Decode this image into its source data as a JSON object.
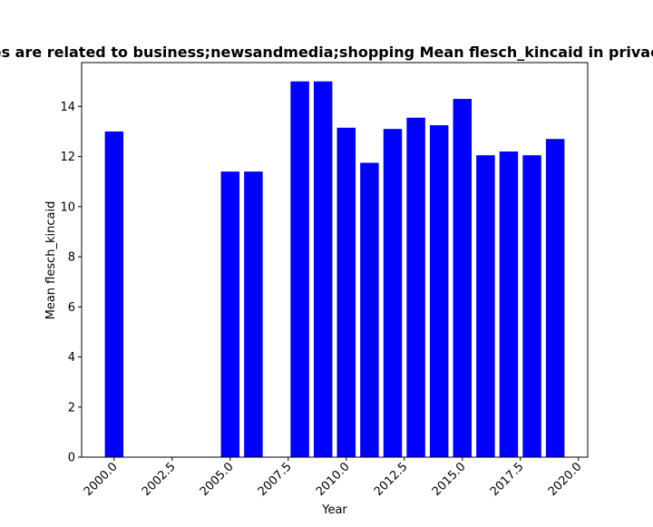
{
  "chart_data": {
    "type": "bar",
    "title": "Websites are related to business;newsandmedia;shopping Mean flesch_kincaid in privacy policies",
    "xlabel": "Year",
    "ylabel": "Mean flesch_kincaid",
    "x": [
      2000,
      2005,
      2006,
      2008,
      2009,
      2010,
      2011,
      2012,
      2013,
      2014,
      2015,
      2016,
      2017,
      2018,
      2019
    ],
    "values": [
      13.0,
      11.4,
      11.4,
      15.0,
      15.0,
      13.15,
      11.75,
      13.1,
      13.55,
      13.25,
      14.3,
      12.05,
      12.2,
      12.05,
      12.7
    ],
    "xlim": [
      1998.6,
      2020.4
    ],
    "ylim": [
      0,
      15.75
    ],
    "xticks": [
      2000.0,
      2002.5,
      2005.0,
      2007.5,
      2010.0,
      2012.5,
      2015.0,
      2017.5,
      2020.0
    ],
    "xtick_labels": [
      "2000.0",
      "2002.5",
      "2005.0",
      "2007.5",
      "2010.0",
      "2012.5",
      "2015.0",
      "2017.5",
      "2020.0"
    ],
    "yticks": [
      0,
      2,
      4,
      6,
      8,
      10,
      12,
      14
    ],
    "ytick_labels": [
      "0",
      "2",
      "4",
      "6",
      "8",
      "10",
      "12",
      "14"
    ],
    "bar_color": "#0000ff",
    "grid": false,
    "legend": "none"
  }
}
